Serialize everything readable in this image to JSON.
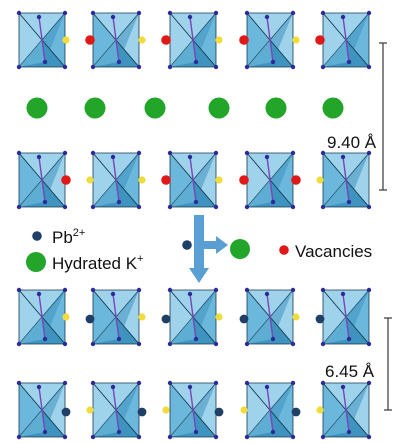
{
  "colors": {
    "octa_light": "#9fd3ec",
    "octa_mid": "#6cb8dc",
    "octa_dark": "#3f93bf",
    "octa_edge": "#17394f",
    "vertex": "#2b2b9a",
    "center_line": "#7a45b8",
    "dot_yellow": "#f2dc3a",
    "dot_red": "#e01818",
    "dot_navy": "#1f3f66",
    "dot_green": "#23a52a",
    "arrow": "#5a9fd4",
    "bracket": "#444444"
  },
  "layers": [
    {
      "id": "layer-1",
      "interlayer": [
        "yellow",
        "red",
        "yellow",
        "red",
        "yellow",
        "red",
        "yellow",
        "red"
      ]
    },
    {
      "id": "layer-2",
      "interlayer": [
        "red",
        "yellow",
        "yellow",
        "red",
        "yellow",
        "red",
        "red",
        "yellow"
      ]
    },
    {
      "id": "layer-3",
      "interlayer": [
        "yellow",
        "navy",
        "yellow",
        "navy",
        "yellow",
        "navy",
        "yellow",
        "navy"
      ]
    },
    {
      "id": "layer-4",
      "interlayer": [
        "navy",
        "yellow",
        "navy",
        "yellow",
        "navy",
        "yellow",
        "navy",
        "yellow"
      ]
    }
  ],
  "spacing_labels": {
    "top": "9.40 Å",
    "bottom": "6.45 Å"
  },
  "legend": {
    "pb_base": "Pb",
    "pb_sup": "2+",
    "k_base": "Hydrated K",
    "k_sup": "+",
    "vacancies": "Vacancies"
  },
  "green_row_count": 6
}
